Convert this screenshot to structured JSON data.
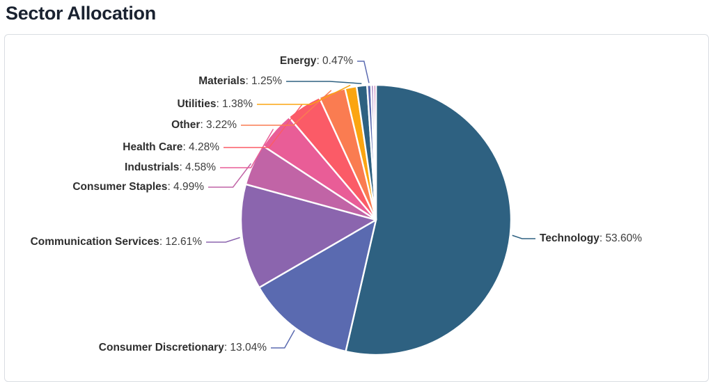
{
  "header": {
    "title": "Sector Allocation"
  },
  "chart_data": {
    "type": "pie",
    "title": "Sector Allocation",
    "start_angle_deg": -90,
    "direction": "clockwise",
    "label_separator": ": ",
    "legend_position": "callout-labels",
    "sectors": [
      {
        "name": "Technology",
        "value": "53.60%",
        "pct": 53.6,
        "color": "#2e6181",
        "labeled": true
      },
      {
        "name": "Consumer Discretionary",
        "value": "13.04%",
        "pct": 13.04,
        "color": "#5a6ab0",
        "labeled": true
      },
      {
        "name": "Communication Services",
        "value": "12.61%",
        "pct": 12.61,
        "color": "#8b65ae",
        "labeled": true
      },
      {
        "name": "Consumer Staples",
        "value": "4.99%",
        "pct": 4.99,
        "color": "#c164a6",
        "labeled": true
      },
      {
        "name": "Industrials",
        "value": "4.58%",
        "pct": 4.58,
        "color": "#e95d97",
        "labeled": true
      },
      {
        "name": "Health Care",
        "value": "4.28%",
        "pct": 4.28,
        "color": "#fb5b67",
        "labeled": true
      },
      {
        "name": "Other",
        "value": "3.22%",
        "pct": 3.22,
        "color": "#fa7c51",
        "labeled": true
      },
      {
        "name": "Utilities",
        "value": "1.38%",
        "pct": 1.38,
        "color": "#fba511",
        "labeled": true
      },
      {
        "name": "Materials",
        "value": "1.25%",
        "pct": 1.25,
        "color": "#2e6181",
        "labeled": true
      },
      {
        "name": "Energy",
        "value": "0.47%",
        "pct": 0.47,
        "color": "#5a6ab0",
        "labeled": true
      },
      {
        "name": "",
        "value": "",
        "pct": 0.3,
        "color": "#8b65ae",
        "labeled": false
      },
      {
        "name": "",
        "value": "",
        "pct": 0.28,
        "color": "#c164a6",
        "labeled": false
      }
    ]
  }
}
